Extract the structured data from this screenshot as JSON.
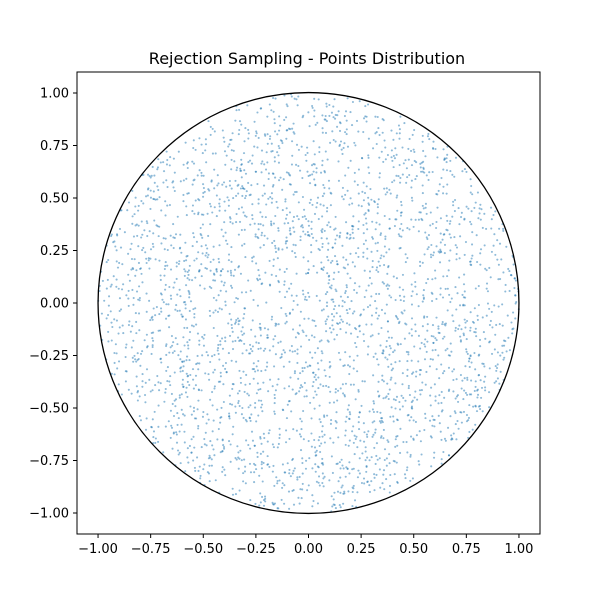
{
  "chart_data": {
    "type": "scatter",
    "title": "Rejection Sampling - Points Distribution",
    "xlabel": "",
    "ylabel": "",
    "xlim": [
      -1.1,
      1.1
    ],
    "ylim": [
      -1.1,
      1.1
    ],
    "xticks": [
      -1.0,
      -0.75,
      -0.5,
      -0.25,
      0.0,
      0.25,
      0.5,
      0.75,
      1.0
    ],
    "yticks": [
      -1.0,
      -0.75,
      -0.5,
      -0.25,
      0.0,
      0.25,
      0.5,
      0.75,
      1.0
    ],
    "xtick_labels": [
      "−1.00",
      "−0.75",
      "−0.50",
      "−0.25",
      "0.00",
      "0.25",
      "0.50",
      "0.75",
      "1.00"
    ],
    "ytick_labels": [
      "−1.00",
      "−0.75",
      "−0.50",
      "−0.25",
      "0.00",
      "0.25",
      "0.50",
      "0.75",
      "1.00"
    ],
    "grid": false,
    "series": [
      {
        "name": "points",
        "description": "uniform points inside the unit circle (approx. 3000 samples)",
        "sample_count": 3000,
        "distribution": "uniform within radius 1 centered at (0, 0)",
        "color": "#1f77b4",
        "alpha": 0.5
      },
      {
        "name": "unit circle",
        "type": "circle",
        "center": [
          0,
          0
        ],
        "radius": 1.0,
        "color": "#000000"
      }
    ]
  }
}
